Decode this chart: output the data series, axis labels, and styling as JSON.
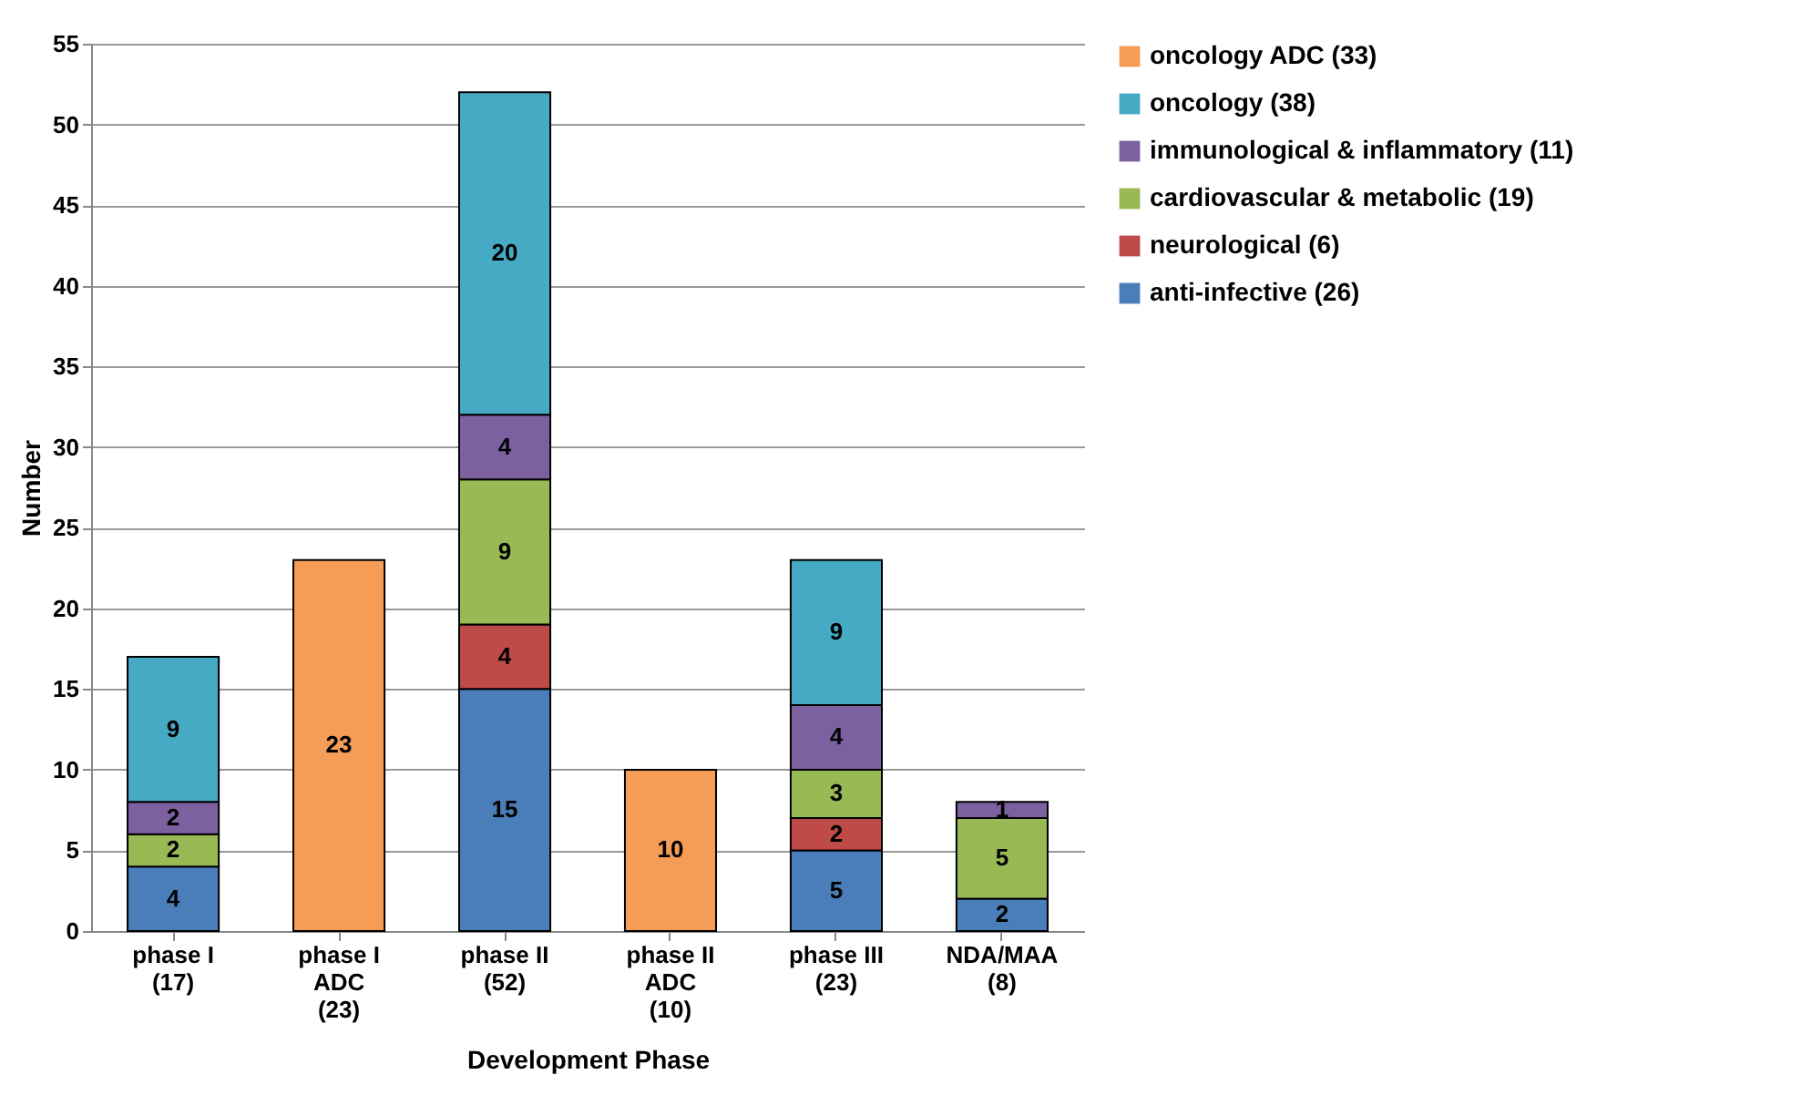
{
  "chart_data": {
    "type": "bar",
    "stacked": true,
    "xlabel": "Development Phase",
    "ylabel": "Number",
    "categories": [
      "phase I\n(17)",
      "phase I\nADC\n(23)",
      "phase II\n(52)",
      "phase II\nADC\n(10)",
      "phase III\n(23)",
      "NDA/MAA\n(8)"
    ],
    "series": [
      {
        "name": "anti-infective (26)",
        "color": "#4a7ebb",
        "values": [
          4,
          null,
          15,
          null,
          5,
          2
        ]
      },
      {
        "name": "neurological (6)",
        "color": "#be4b48",
        "values": [
          null,
          null,
          4,
          null,
          2,
          null
        ]
      },
      {
        "name": "cardiovascular & metabolic (19)",
        "color": "#98b954",
        "values": [
          2,
          null,
          9,
          null,
          3,
          5
        ]
      },
      {
        "name": "immunological & inflammatory (11)",
        "color": "#7d60a0",
        "values": [
          2,
          null,
          4,
          null,
          4,
          1
        ]
      },
      {
        "name": "oncology (38)",
        "color": "#46aac5",
        "values": [
          9,
          null,
          20,
          null,
          9,
          null
        ]
      },
      {
        "name": "oncology ADC (33)",
        "color": "#f59d56",
        "values": [
          null,
          23,
          null,
          10,
          null,
          null
        ]
      }
    ],
    "ylim": [
      0,
      55
    ],
    "yticks": [
      0,
      5,
      10,
      15,
      20,
      25,
      30,
      35,
      40,
      45,
      50,
      55
    ],
    "grid": "y",
    "legend": "right",
    "data_labels": true
  }
}
